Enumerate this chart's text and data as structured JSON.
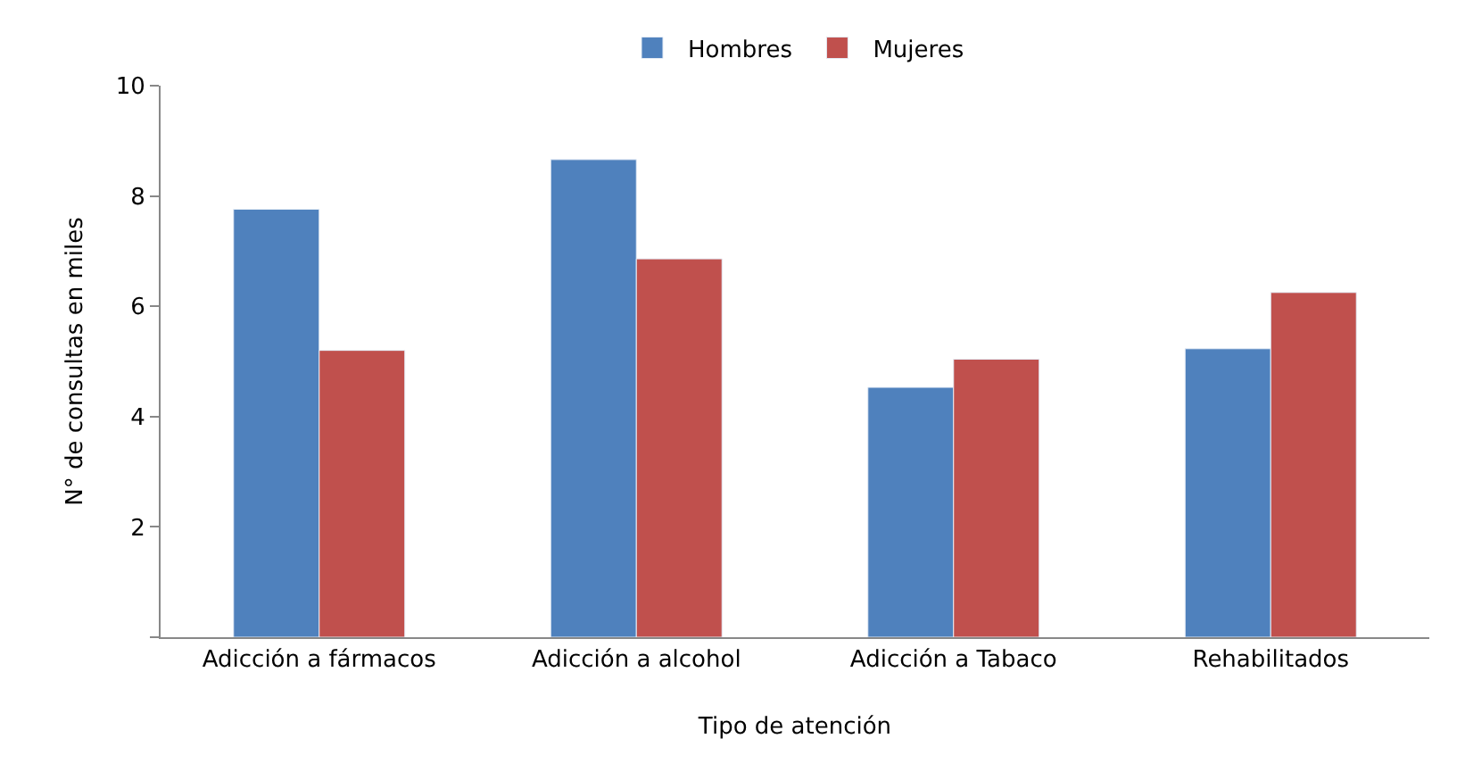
{
  "chart_data": {
    "type": "bar",
    "xlabel": "Tipo de atención",
    "ylabel": "N° de consultas en miles",
    "categories": [
      "Adicción a fármacos",
      "Adicción a alcohol",
      "Adicción a Tabaco",
      "Rehabilitados"
    ],
    "series": [
      {
        "name": "Hombres",
        "color": "#4f81bd",
        "values": [
          7.76,
          8.66,
          4.53,
          5.23
        ]
      },
      {
        "name": "Mujeres",
        "color": "#c0504d",
        "values": [
          5.2,
          6.86,
          5.04,
          6.25
        ]
      }
    ],
    "ylim": [
      0,
      10
    ],
    "yticks": [
      {
        "value": 0,
        "label": null
      },
      2,
      4,
      6,
      8,
      10
    ],
    "legend": "top"
  }
}
